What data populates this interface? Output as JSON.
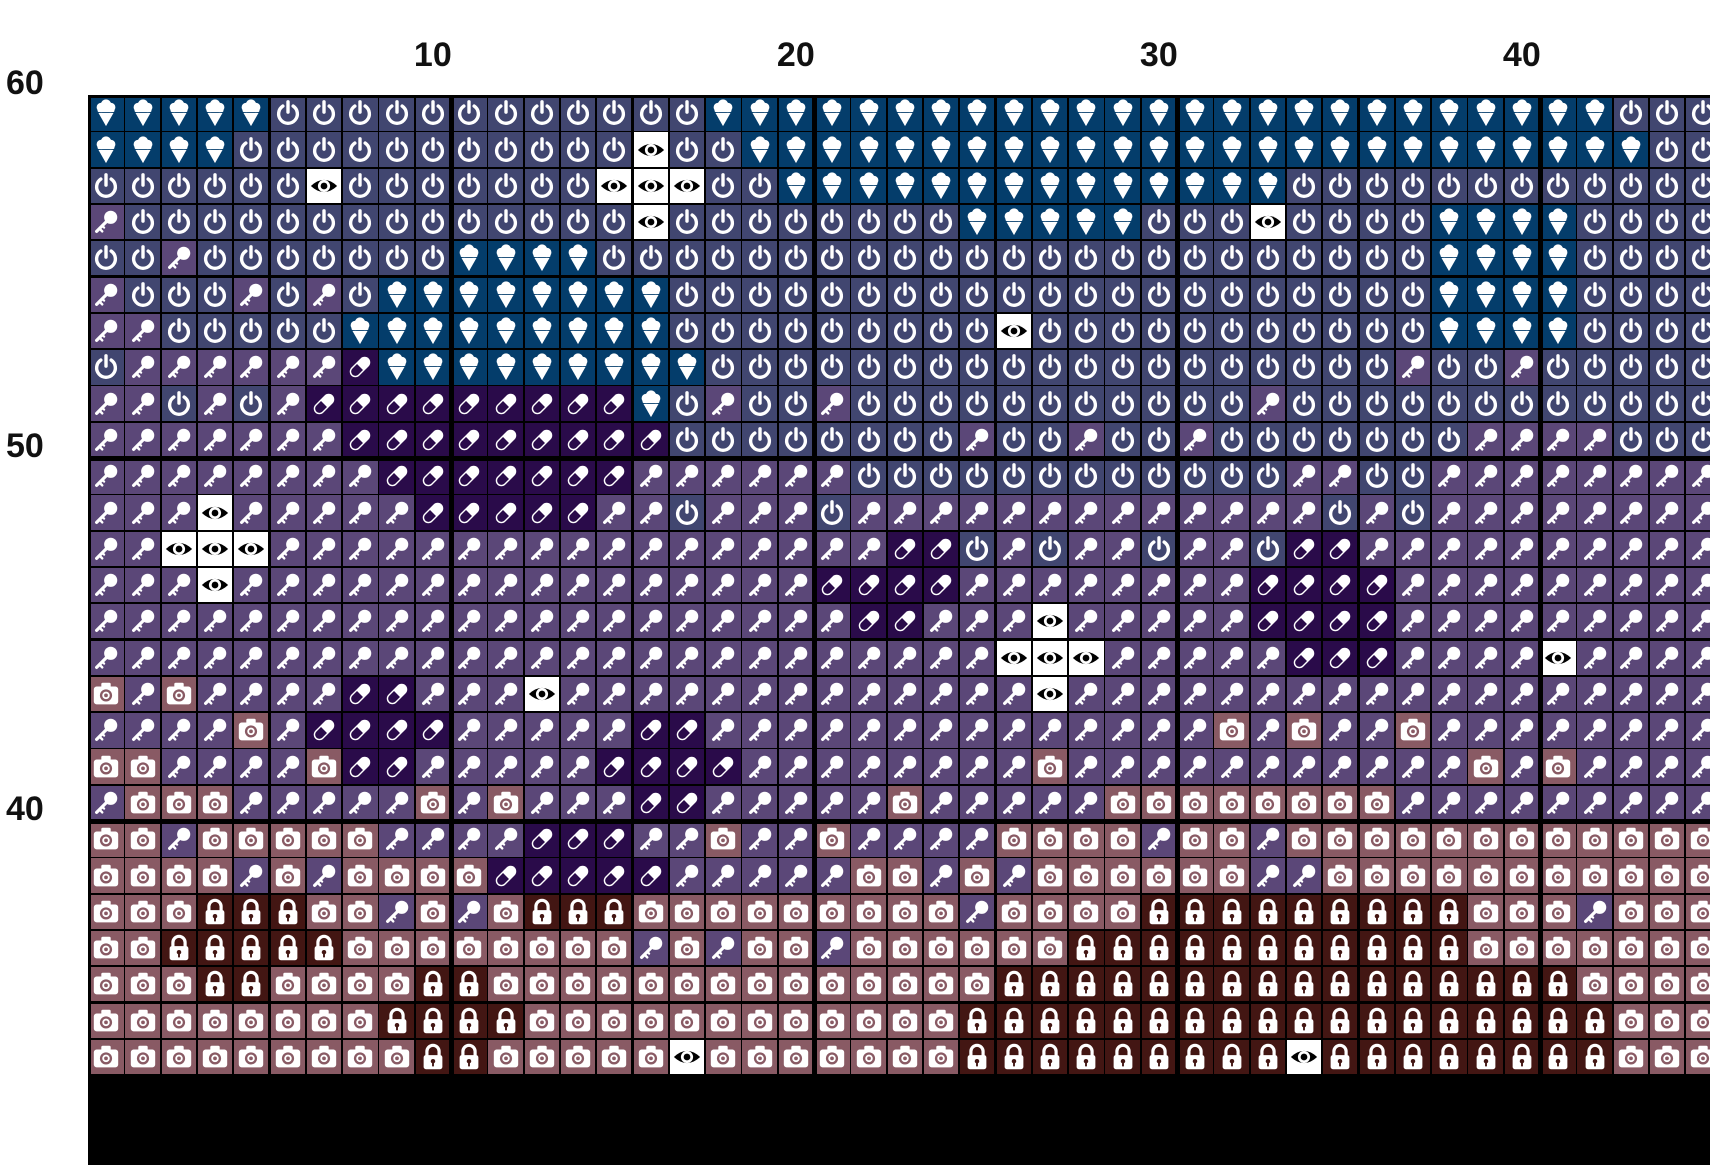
{
  "axis": {
    "columns": [
      "10",
      "20",
      "30",
      "40"
    ],
    "rows": [
      "60",
      "50",
      "40"
    ]
  },
  "legend": {
    "K": {
      "icon": "key-icon",
      "bg": "#5b4778"
    },
    "P": {
      "icon": "power-icon",
      "bg": "#414670"
    },
    "I": {
      "icon": "ice-cream-icon",
      "bg": "#043d6b"
    },
    "E": {
      "icon": "eye-icon",
      "bg": "#ffffff"
    },
    "M": {
      "icon": "pill-icon",
      "bg": "#2a0b4a"
    },
    "C": {
      "icon": "camera-icon",
      "bg": "#895a64"
    },
    "L": {
      "icon": "lock-icon",
      "bg": "#431613"
    }
  },
  "grid": [
    "IIIIIPPPPPPPPPPPPIIIIIIIIIIIIIIIIIIIIIIIIIPPPP",
    "IIIIPPPPPPPPPPPEPPIIIIIIIIIIIIIIIIIIIIIIIIIPPP",
    "PPPPPPEPPPPPPPEEEPPIIIIIIIIIIIIIIPPPPPPPPPPPPP",
    "KPPPPPPPPPPPPPPEPPPPPPPPIIIIIPPPEPPPPIIIIPPPPP",
    "PPKPPPPPPPIIIIPPPPPPPPPPPPPPPPPPPPPPPIIIIPPPPP",
    "KPPPKPKPIIIIIIIIPPPPPPPPPPPPPPPPPPPPPIIIIPPPPP",
    "KKPPPPPIIIIIIIIIPPPPPPPPPEPPPPPPPPPPPIIIIPPPPP",
    "PKKKKKKMIIIIIIIIIPPPPPPPPPPPPPPPPPPPKPPKPPPPPP",
    "KKPKPKMMMMMMMMMIPKPPKPPPPPPPPPPPKPPPPPPPPPPPPP",
    "KKKKKKKMMMMMMMMMPPPPPPPPKPPKPPKPPPPPPPKKKKPPPP",
    "KKKKKKKKMMMMMMMKKKKKKPPPPPPPPPPPPKKPPKKKKKKKKK",
    "KKKEKKKKKMMMMMKKPKKKPKKKKKKKKKKKKKPKPKKKKKKKKK",
    "KKEEEKKKKKKKKKKKKKKKKKMMPKPKKPKKPMMKKKKKKKKKKK",
    "KKKEKKKKKKKKKKKKKKKKMMMMKKKKKKKKMMMMKKKKKKKKKK",
    "KKKKKKKKKKKKKKKKKKKKKMMKKKEKKKKKMMMMKKKKKKKKKK",
    "KKKKKKKKKKKKKKKKKKKKKKKKKEEEKKKKKMMMKKKKEKKKKK",
    "CKCKKKKMMKKKEKKKKKKKKKKKKKEKKKKKKKKKKKKKKKKKKK",
    "KKKKCKMMMMKKKKKMMKKKKKKKKKKKKKKCKCKKCKKKKKKKKK",
    "CCKKKKCMMKKKKKMMMMKKKKKKKKCKKKKKKKKKKKCKCKKKKK",
    "KCCCKKKKKCKCKKKMMKKKKKCKKKKKCCCCCCCCKKKKKKKKKK",
    "CCKCCCCCKKKKMMMKKCKKCKKKKCCCCKCCKCCCCCCCCCCCCC",
    "CCCCKCKCCCCMMMMMKKKKKCCKCKCCCCCCKKCCCCCCCCCCCC",
    "CCCLLLCCKCKCLLLCCCCCCCCCKCCCCLLLLLLLLLCCCKCCCC",
    "CCLLLLLCCCCCCCCKCKCCKCCCCCCLLLLLLLLLLLCCCCCCCC",
    "CCCLLCCCCLLCCCCCCCCCCCCCCLLLLLLLLLLLLLLLLCCCCC",
    "CCCCCCCCLLLLCCCCCCCCCCCCLLLLLLLLLLLLLLLLLLCCCC",
    "CCCCCCCCCLLCCCCCECCCCCCCLLLLLLLLLELLLLLLLLCCCC"
  ]
}
